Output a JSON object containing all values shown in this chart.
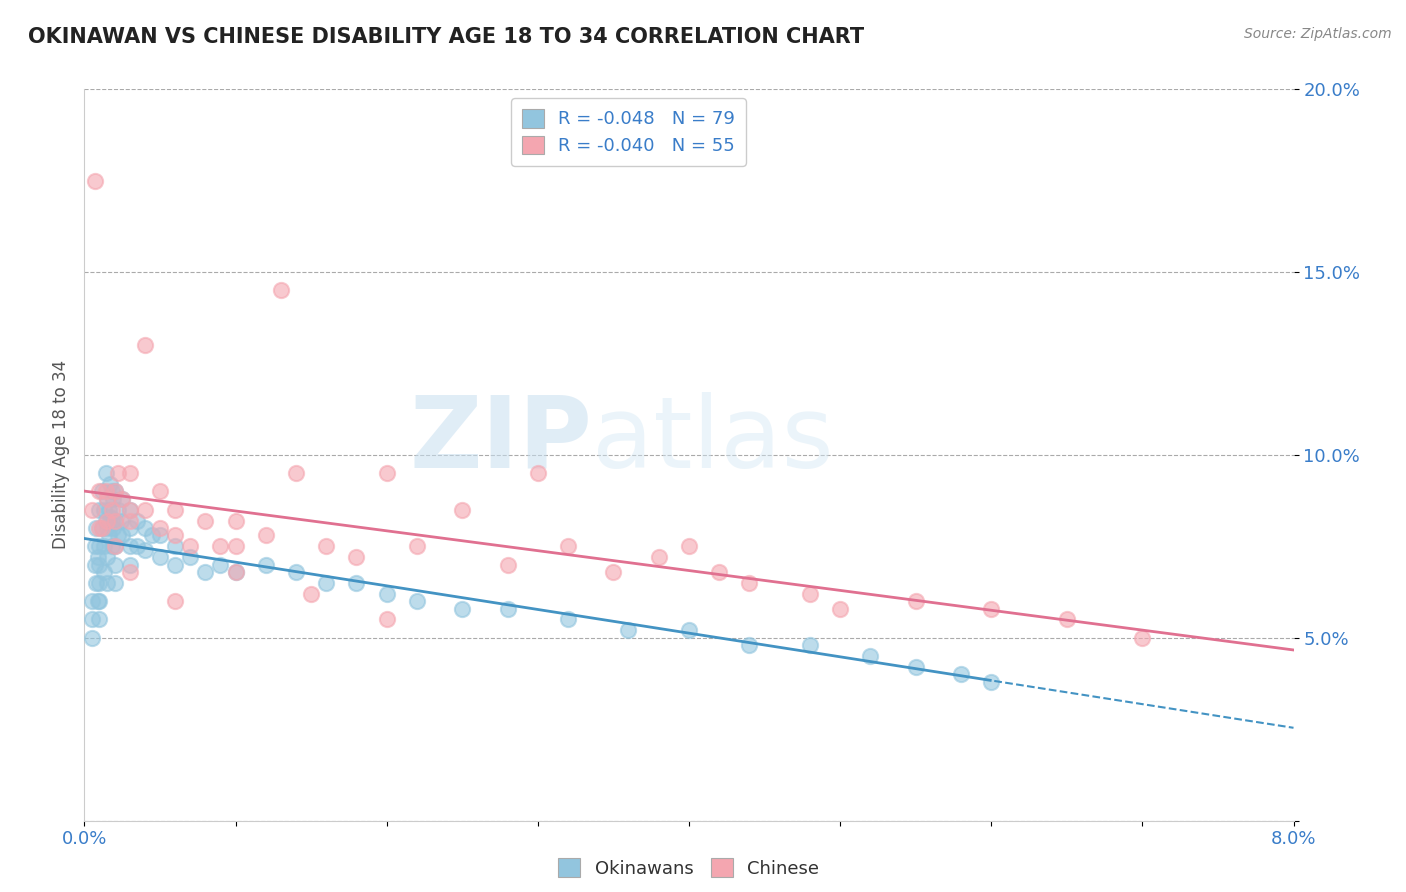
{
  "title": "OKINAWAN VS CHINESE DISABILITY AGE 18 TO 34 CORRELATION CHART",
  "source_text": "Source: ZipAtlas.com",
  "ylabel": "Disability Age 18 to 34",
  "xlim": [
    0.0,
    0.08
  ],
  "ylim": [
    0.0,
    0.2
  ],
  "xticks": [
    0.0,
    0.01,
    0.02,
    0.03,
    0.04,
    0.05,
    0.06,
    0.07,
    0.08
  ],
  "xticklabels": [
    "0.0%",
    "",
    "",
    "",
    "",
    "",
    "",
    "",
    "8.0%"
  ],
  "yticks": [
    0.0,
    0.05,
    0.1,
    0.15,
    0.2
  ],
  "yticklabels": [
    "",
    "5.0%",
    "10.0%",
    "15.0%",
    "20.0%"
  ],
  "legend_r1": "R = -0.048",
  "legend_n1": "N = 79",
  "legend_r2": "R = -0.040",
  "legend_n2": "N = 55",
  "color_okinawan": "#92c5de",
  "color_chinese": "#f4a6b0",
  "trend_color_okinawan": "#4393c3",
  "trend_color_chinese": "#e07090",
  "background_color": "#ffffff",
  "watermark_zip": "ZIP",
  "watermark_atlas": "atlas",
  "okinawan_x": [
    0.0005,
    0.0005,
    0.0005,
    0.0007,
    0.0007,
    0.0008,
    0.0008,
    0.0009,
    0.0009,
    0.001,
    0.001,
    0.001,
    0.001,
    0.001,
    0.001,
    0.0012,
    0.0012,
    0.0013,
    0.0013,
    0.0013,
    0.0014,
    0.0014,
    0.0015,
    0.0015,
    0.0015,
    0.0015,
    0.0016,
    0.0016,
    0.0017,
    0.0017,
    0.0018,
    0.0018,
    0.0018,
    0.0019,
    0.0019,
    0.002,
    0.002,
    0.002,
    0.002,
    0.002,
    0.0022,
    0.0022,
    0.0024,
    0.0025,
    0.0025,
    0.003,
    0.003,
    0.003,
    0.003,
    0.0035,
    0.0035,
    0.004,
    0.004,
    0.0045,
    0.005,
    0.005,
    0.006,
    0.006,
    0.007,
    0.008,
    0.009,
    0.01,
    0.012,
    0.014,
    0.016,
    0.018,
    0.02,
    0.022,
    0.025,
    0.028,
    0.032,
    0.036,
    0.04,
    0.044,
    0.048,
    0.052,
    0.055,
    0.058,
    0.06
  ],
  "okinawan_y": [
    0.06,
    0.055,
    0.05,
    0.075,
    0.07,
    0.08,
    0.065,
    0.072,
    0.06,
    0.085,
    0.075,
    0.07,
    0.065,
    0.06,
    0.055,
    0.09,
    0.08,
    0.085,
    0.075,
    0.068,
    0.095,
    0.082,
    0.088,
    0.08,
    0.072,
    0.065,
    0.085,
    0.078,
    0.092,
    0.083,
    0.09,
    0.082,
    0.075,
    0.088,
    0.08,
    0.09,
    0.082,
    0.075,
    0.07,
    0.065,
    0.085,
    0.078,
    0.082,
    0.088,
    0.078,
    0.085,
    0.08,
    0.075,
    0.07,
    0.082,
    0.075,
    0.08,
    0.074,
    0.078,
    0.078,
    0.072,
    0.075,
    0.07,
    0.072,
    0.068,
    0.07,
    0.068,
    0.07,
    0.068,
    0.065,
    0.065,
    0.062,
    0.06,
    0.058,
    0.058,
    0.055,
    0.052,
    0.052,
    0.048,
    0.048,
    0.045,
    0.042,
    0.04,
    0.038
  ],
  "chinese_x": [
    0.0005,
    0.0007,
    0.001,
    0.001,
    0.0012,
    0.0014,
    0.0015,
    0.0015,
    0.0018,
    0.002,
    0.002,
    0.002,
    0.0022,
    0.0025,
    0.003,
    0.003,
    0.003,
    0.004,
    0.004,
    0.005,
    0.005,
    0.006,
    0.006,
    0.007,
    0.008,
    0.009,
    0.01,
    0.01,
    0.012,
    0.013,
    0.014,
    0.016,
    0.018,
    0.02,
    0.022,
    0.025,
    0.028,
    0.03,
    0.032,
    0.035,
    0.038,
    0.04,
    0.042,
    0.044,
    0.048,
    0.05,
    0.055,
    0.06,
    0.065,
    0.07,
    0.003,
    0.006,
    0.01,
    0.015,
    0.02
  ],
  "chinese_y": [
    0.085,
    0.175,
    0.09,
    0.08,
    0.08,
    0.09,
    0.088,
    0.082,
    0.085,
    0.09,
    0.082,
    0.075,
    0.095,
    0.088,
    0.085,
    0.095,
    0.082,
    0.13,
    0.085,
    0.09,
    0.08,
    0.085,
    0.078,
    0.075,
    0.082,
    0.075,
    0.082,
    0.075,
    0.078,
    0.145,
    0.095,
    0.075,
    0.072,
    0.095,
    0.075,
    0.085,
    0.07,
    0.095,
    0.075,
    0.068,
    0.072,
    0.075,
    0.068,
    0.065,
    0.062,
    0.058,
    0.06,
    0.058,
    0.055,
    0.05,
    0.068,
    0.06,
    0.068,
    0.062,
    0.055
  ]
}
